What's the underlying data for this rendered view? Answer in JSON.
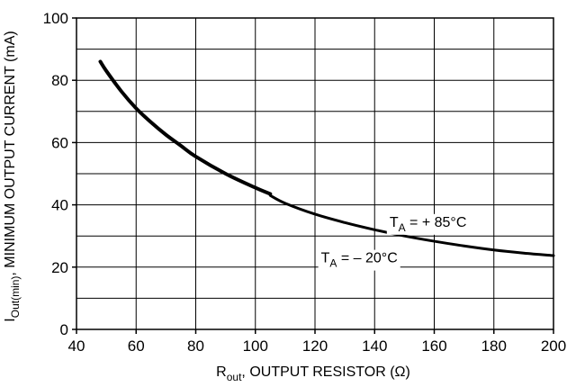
{
  "chart_data": {
    "type": "line",
    "title": "",
    "xlabel": {
      "main": "R",
      "sub": "out",
      "rest": ", OUTPUT RESISTOR (Ω)"
    },
    "ylabel": {
      "main": "I",
      "sub": "Out(min)",
      "rest": ", MINIMUM OUTPUT CURRENT (mA)"
    },
    "xlim": [
      40,
      200
    ],
    "ylim": [
      0,
      100
    ],
    "x_ticks": [
      40,
      60,
      80,
      100,
      120,
      140,
      160,
      180,
      200
    ],
    "y_ticks": [
      0,
      20,
      40,
      60,
      80,
      100
    ],
    "x_minor_step": 20,
    "y_minor_step": 10,
    "grid": true,
    "series": [
      {
        "name": "TA = -20°C",
        "x": [
          48,
          50,
          55,
          60,
          65,
          70,
          75,
          80,
          90,
          100,
          105
        ],
        "y": [
          86,
          83,
          76.5,
          71,
          66.5,
          62.5,
          59,
          55.5,
          50,
          45.5,
          43.5
        ]
      },
      {
        "name": "TA = +85°C",
        "x": [
          105,
          110,
          120,
          130,
          140,
          150,
          160,
          170,
          180,
          190,
          200
        ],
        "y": [
          43,
          40.5,
          37,
          34.3,
          32,
          30,
          28.3,
          26.8,
          25.5,
          24.5,
          23.7
        ]
      }
    ],
    "annotations": [
      {
        "main": "T",
        "sub": "A",
        "rest": " = + 85°C",
        "x": 145,
        "y": 33
      },
      {
        "main": "T",
        "sub": "A",
        "rest": " = – 20°C",
        "x": 122,
        "y": 21.5
      }
    ]
  }
}
